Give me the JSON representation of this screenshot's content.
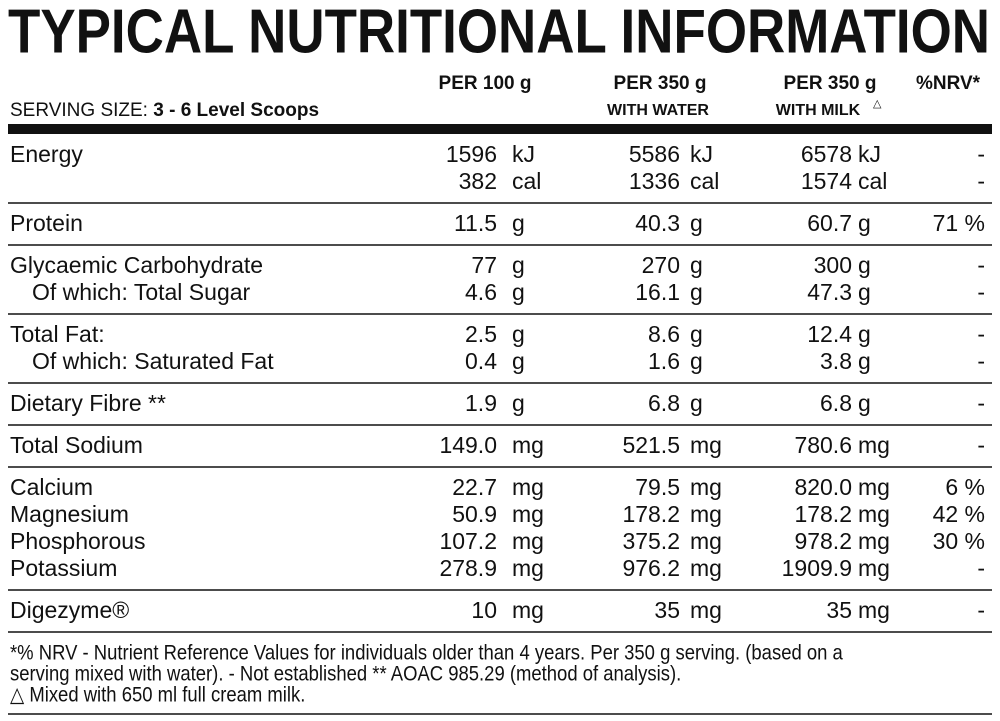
{
  "title": "TYPICAL NUTRITIONAL INFORMATION",
  "serving": {
    "label": "SERVING SIZE:",
    "value": "3 - 6 Level Scoops"
  },
  "columns": [
    {
      "title": "PER 100 g"
    },
    {
      "title": "PER 350 g",
      "sub": "WITH WATER"
    },
    {
      "title": "PER 350 g",
      "sub": "WITH MILK",
      "mark": "△"
    },
    {
      "title": "%NRV*"
    }
  ],
  "groups": [
    {
      "rows": [
        {
          "name": "Energy",
          "values": [
            [
              "1596",
              "kJ"
            ],
            [
              "5586",
              "kJ"
            ],
            [
              "6578",
              "kJ"
            ]
          ],
          "nrv": "-"
        },
        {
          "name": null,
          "values": [
            [
              "382",
              "cal"
            ],
            [
              "1336",
              "cal"
            ],
            [
              "1574",
              "cal"
            ]
          ],
          "nrv": "-"
        }
      ]
    },
    {
      "rows": [
        {
          "name": "Protein",
          "values": [
            [
              "11.5",
              "g"
            ],
            [
              "40.3",
              "g"
            ],
            [
              "60.7",
              "g"
            ]
          ],
          "nrv": "71 %"
        }
      ]
    },
    {
      "rows": [
        {
          "name": "Glycaemic Carbohydrate",
          "values": [
            [
              "77",
              "g"
            ],
            [
              "270",
              "g"
            ],
            [
              "300",
              "g"
            ]
          ],
          "nrv": "-"
        },
        {
          "name": "Of which: Total Sugar",
          "indent": true,
          "values": [
            [
              "4.6",
              "g"
            ],
            [
              "16.1",
              "g"
            ],
            [
              "47.3",
              "g"
            ]
          ],
          "nrv": "-"
        }
      ]
    },
    {
      "rows": [
        {
          "name": "Total Fat:",
          "values": [
            [
              "2.5",
              "g"
            ],
            [
              "8.6",
              "g"
            ],
            [
              "12.4",
              "g"
            ]
          ],
          "nrv": "-"
        },
        {
          "name": "Of which: Saturated Fat",
          "indent": true,
          "values": [
            [
              "0.4",
              "g"
            ],
            [
              "1.6",
              "g"
            ],
            [
              "3.8",
              "g"
            ]
          ],
          "nrv": "-"
        }
      ]
    },
    {
      "rows": [
        {
          "name": "Dietary Fibre **",
          "values": [
            [
              "1.9",
              "g"
            ],
            [
              "6.8",
              "g"
            ],
            [
              "6.8",
              "g"
            ]
          ],
          "nrv": "-"
        }
      ]
    },
    {
      "rows": [
        {
          "name": "Total Sodium",
          "values": [
            [
              "149.0",
              "mg"
            ],
            [
              "521.5",
              "mg"
            ],
            [
              "780.6",
              "mg"
            ]
          ],
          "nrv": "-"
        }
      ]
    },
    {
      "rows": [
        {
          "name": "Calcium",
          "values": [
            [
              "22.7",
              "mg"
            ],
            [
              "79.5",
              "mg"
            ],
            [
              "820.0",
              "mg"
            ]
          ],
          "nrv": "6 %"
        },
        {
          "name": "Magnesium",
          "values": [
            [
              "50.9",
              "mg"
            ],
            [
              "178.2",
              "mg"
            ],
            [
              "178.2",
              "mg"
            ]
          ],
          "nrv": "42 %"
        },
        {
          "name": "Phosphorous",
          "values": [
            [
              "107.2",
              "mg"
            ],
            [
              "375.2",
              "mg"
            ],
            [
              "978.2",
              "mg"
            ]
          ],
          "nrv": "30 %"
        },
        {
          "name": "Potassium",
          "values": [
            [
              "278.9",
              "mg"
            ],
            [
              "976.2",
              "mg"
            ],
            [
              "1909.9",
              "mg"
            ]
          ],
          "nrv": "-"
        }
      ]
    },
    {
      "rows": [
        {
          "name": "Digezyme®",
          "values": [
            [
              "10",
              "mg"
            ],
            [
              "35",
              "mg"
            ],
            [
              "35",
              "mg"
            ]
          ],
          "nrv": "-"
        }
      ]
    }
  ],
  "footnotes": [
    "*% NRV - Nutrient Reference Values for individuals older than 4 years. Per 350 g serving. (based on a",
    "serving mixed with water). - Not established ** AOAC 985.29 (method of analysis).",
    "△ Mixed with 650 ml full cream milk."
  ]
}
